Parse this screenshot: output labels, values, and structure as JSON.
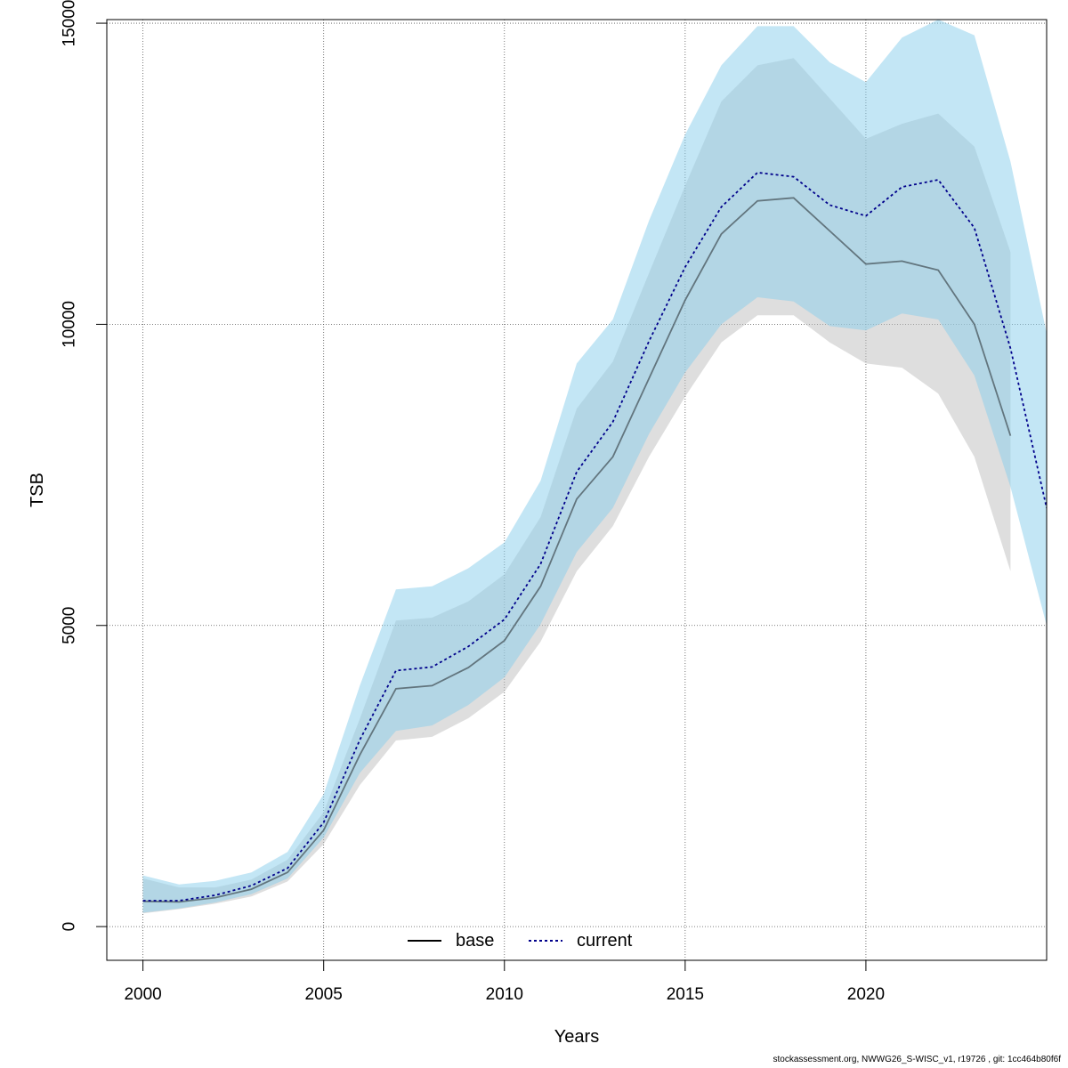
{
  "chart_data": {
    "type": "area",
    "xlabel": "Years",
    "ylabel": "TSB",
    "xlim": [
      1999,
      2025
    ],
    "ylim": [
      -560,
      15060
    ],
    "x_ticks": [
      2000,
      2005,
      2010,
      2015,
      2020
    ],
    "y_ticks": [
      0,
      5000,
      10000,
      15000
    ],
    "grid": true,
    "legend_position": "bottom-center",
    "years": [
      2000,
      2001,
      2002,
      2003,
      2004,
      2005,
      2006,
      2007,
      2008,
      2009,
      2010,
      2011,
      2012,
      2013,
      2014,
      2015,
      2016,
      2017,
      2018,
      2019,
      2020,
      2021,
      2022,
      2023,
      2024,
      2025
    ],
    "series": [
      {
        "name": "base",
        "line_style": "solid",
        "line_color": "#000000",
        "band_color": "#bebebe",
        "values": [
          420,
          410,
          480,
          620,
          900,
          1600,
          2850,
          3950,
          4000,
          4300,
          4750,
          5650,
          7100,
          7800,
          9100,
          10400,
          11500,
          12050,
          12100,
          11550,
          11000,
          11050,
          10900,
          10000,
          8150,
          null
        ],
        "lower": [
          220,
          290,
          380,
          500,
          750,
          1370,
          2350,
          3090,
          3150,
          3460,
          3900,
          4730,
          5900,
          6650,
          7800,
          8800,
          9700,
          10150,
          10150,
          9700,
          9350,
          9280,
          8850,
          7800,
          5900,
          null
        ],
        "upper": [
          800,
          650,
          650,
          780,
          1110,
          1900,
          3450,
          5080,
          5130,
          5400,
          5850,
          6800,
          8600,
          9380,
          10850,
          12300,
          13700,
          14300,
          14420,
          13750,
          13080,
          13330,
          13500,
          12950,
          11200,
          null
        ]
      },
      {
        "name": "current",
        "line_style": "dashed",
        "line_color": "#00008b",
        "band_color": "#87ceeb",
        "values": [
          430,
          430,
          520,
          680,
          970,
          1730,
          3100,
          4250,
          4310,
          4650,
          5100,
          6020,
          7550,
          8380,
          9720,
          10950,
          11950,
          12520,
          12450,
          11980,
          11800,
          12280,
          12400,
          11600,
          9600,
          6950
        ],
        "lower": [
          230,
          300,
          400,
          540,
          800,
          1480,
          2550,
          3250,
          3340,
          3680,
          4140,
          5020,
          6220,
          6950,
          8180,
          9200,
          10000,
          10450,
          10380,
          9970,
          9900,
          10180,
          10080,
          9150,
          7300,
          5000
        ],
        "upper": [
          850,
          700,
          760,
          900,
          1240,
          2200,
          4000,
          5600,
          5650,
          5950,
          6380,
          7400,
          9350,
          10080,
          11720,
          13150,
          14300,
          14950,
          14950,
          14350,
          14020,
          14760,
          15060,
          14800,
          12700,
          9850
        ]
      }
    ]
  },
  "footer_text": "stockassessment.org, NWWG26_S-WISC_v1, r19726 , git: 1cc464b80f6f"
}
